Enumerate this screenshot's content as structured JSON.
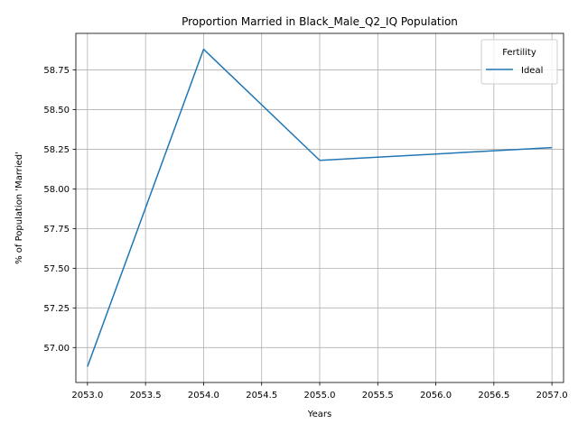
{
  "chart_data": {
    "type": "line",
    "title": "Proportion Married in Black_Male_Q2_IQ Population",
    "xlabel": "Years",
    "ylabel": "% of Population 'Married'",
    "x": [
      2053,
      2054,
      2055,
      2056,
      2057
    ],
    "series": [
      {
        "name": "Ideal",
        "color": "#1f77b4",
        "values": [
          56.88,
          58.88,
          58.18,
          58.22,
          58.26
        ]
      }
    ],
    "xlim": [
      2052.9,
      2057.1
    ],
    "ylim": [
      56.78,
      58.98
    ],
    "xticks": [
      "2053.0",
      "2053.5",
      "2054.0",
      "2054.5",
      "2055.0",
      "2055.5",
      "2056.0",
      "2056.5",
      "2057.0"
    ],
    "xtick_values": [
      2053.0,
      2053.5,
      2054.0,
      2054.5,
      2055.0,
      2055.5,
      2056.0,
      2056.5,
      2057.0
    ],
    "yticks": [
      "57.00",
      "57.25",
      "57.50",
      "57.75",
      "58.00",
      "58.25",
      "58.50",
      "58.75"
    ],
    "ytick_values": [
      57.0,
      57.25,
      57.5,
      57.75,
      58.0,
      58.25,
      58.5,
      58.75
    ],
    "grid": true,
    "legend": {
      "title": "Fertility",
      "placement": "top-right"
    }
  }
}
